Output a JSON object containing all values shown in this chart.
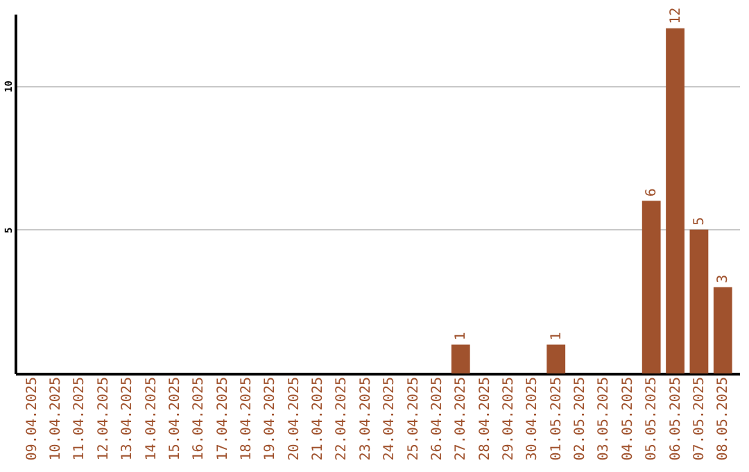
{
  "chart_data": {
    "type": "bar",
    "categories": [
      "09.04.2025",
      "10.04.2025",
      "11.04.2025",
      "12.04.2025",
      "13.04.2025",
      "14.04.2025",
      "15.04.2025",
      "16.04.2025",
      "17.04.2025",
      "18.04.2025",
      "19.04.2025",
      "20.04.2025",
      "21.04.2025",
      "22.04.2025",
      "23.04.2025",
      "24.04.2025",
      "25.04.2025",
      "26.04.2025",
      "27.04.2025",
      "28.04.2025",
      "29.04.2025",
      "30.04.2025",
      "01.05.2025",
      "02.05.2025",
      "03.05.2025",
      "04.05.2025",
      "05.05.2025",
      "06.05.2025",
      "07.05.2025",
      "08.05.2025"
    ],
    "values": [
      0,
      0,
      0,
      0,
      0,
      0,
      0,
      0,
      0,
      0,
      0,
      0,
      0,
      0,
      0,
      0,
      0,
      0,
      1,
      0,
      0,
      0,
      1,
      0,
      0,
      0,
      6,
      12,
      5,
      3
    ],
    "value_labels": [
      null,
      null,
      null,
      null,
      null,
      null,
      null,
      null,
      null,
      null,
      null,
      null,
      null,
      null,
      null,
      null,
      null,
      null,
      "1",
      null,
      null,
      null,
      "1",
      null,
      null,
      null,
      "6",
      "12",
      "5",
      "3"
    ],
    "color": "#a0522d",
    "ylim": [
      0,
      12.5
    ],
    "yticks": [
      5,
      10
    ],
    "grid": "y"
  }
}
